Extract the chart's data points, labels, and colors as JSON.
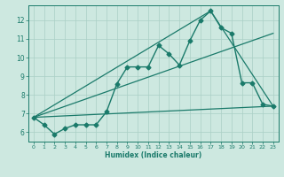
{
  "xlabel": "Humidex (Indice chaleur)",
  "ylabel": "",
  "background_color": "#cde8e0",
  "line_color": "#1a7a6a",
  "grid_color": "#aacfc5",
  "xlim": [
    -0.5,
    23.5
  ],
  "ylim": [
    5.5,
    12.8
  ],
  "xticks": [
    0,
    1,
    2,
    3,
    4,
    5,
    6,
    7,
    8,
    9,
    10,
    11,
    12,
    13,
    14,
    15,
    16,
    17,
    18,
    19,
    20,
    21,
    22,
    23
  ],
  "yticks": [
    6,
    7,
    8,
    9,
    10,
    11,
    12
  ],
  "series": [
    {
      "x": [
        0,
        1,
        2,
        3,
        4,
        5,
        6,
        7,
        8,
        9,
        10,
        11,
        12,
        13,
        14,
        15,
        16,
        17,
        18,
        19,
        20,
        21,
        22,
        23
      ],
      "y": [
        6.8,
        6.4,
        5.9,
        6.2,
        6.4,
        6.4,
        6.4,
        7.1,
        8.6,
        9.5,
        9.5,
        9.5,
        10.65,
        10.2,
        9.6,
        10.9,
        12.0,
        12.5,
        11.6,
        11.3,
        8.65,
        8.65,
        7.5,
        7.4
      ],
      "marker": "D",
      "markersize": 2.5,
      "linewidth": 1.0
    },
    {
      "x": [
        0,
        23
      ],
      "y": [
        6.8,
        11.3
      ],
      "marker": null,
      "linewidth": 0.9
    },
    {
      "x": [
        0,
        17,
        23
      ],
      "y": [
        6.8,
        12.5,
        7.4
      ],
      "marker": null,
      "linewidth": 0.9
    },
    {
      "x": [
        0,
        23
      ],
      "y": [
        6.8,
        7.4
      ],
      "marker": null,
      "linewidth": 0.9
    }
  ]
}
